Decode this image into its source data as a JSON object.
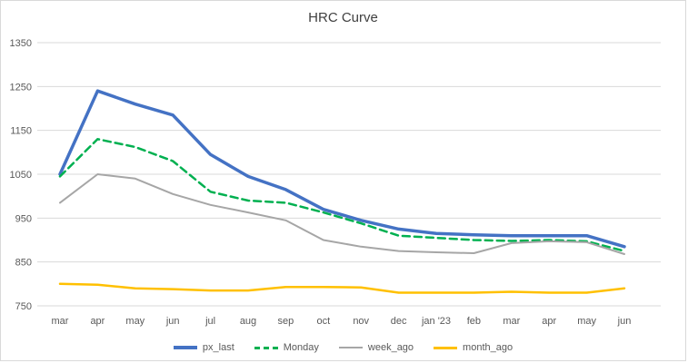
{
  "chart_data": {
    "type": "line",
    "title": "HRC Curve",
    "xlabel": "",
    "ylabel": "",
    "x": [
      "mar",
      "apr",
      "may",
      "jun",
      "jul",
      "aug",
      "sep",
      "oct",
      "nov",
      "dec",
      "jan '23",
      "feb",
      "mar",
      "apr",
      "may",
      "jun"
    ],
    "ylim": [
      750,
      1350
    ],
    "yticks": [
      750,
      850,
      950,
      1050,
      1150,
      1250,
      1350
    ],
    "grid": true,
    "legend_position": "bottom",
    "grid_color": "#d9d9d9",
    "axis_text_color": "#595959",
    "series": [
      {
        "name": "px_last",
        "color": "#4472c4",
        "dash": "solid",
        "width": 3.5,
        "values": [
          1050,
          1240,
          1210,
          1185,
          1095,
          1045,
          1015,
          970,
          945,
          925,
          915,
          912,
          910,
          910,
          910,
          885
        ]
      },
      {
        "name": "Monday",
        "color": "#00b050",
        "dash": "dashed",
        "width": 2.5,
        "values": [
          1045,
          1130,
          1112,
          1080,
          1010,
          990,
          985,
          963,
          938,
          910,
          905,
          900,
          898,
          900,
          897,
          875
        ]
      },
      {
        "name": "week_ago",
        "color": "#a6a6a6",
        "dash": "solid",
        "width": 2,
        "values": [
          985,
          1050,
          1040,
          1005,
          980,
          963,
          945,
          900,
          885,
          875,
          872,
          870,
          893,
          897,
          895,
          868
        ]
      },
      {
        "name": "month_ago",
        "color": "#ffc000",
        "dash": "solid",
        "width": 2.5,
        "values": [
          800,
          798,
          790,
          788,
          785,
          785,
          793,
          793,
          792,
          780,
          780,
          780,
          782,
          780,
          780,
          790
        ]
      }
    ]
  }
}
